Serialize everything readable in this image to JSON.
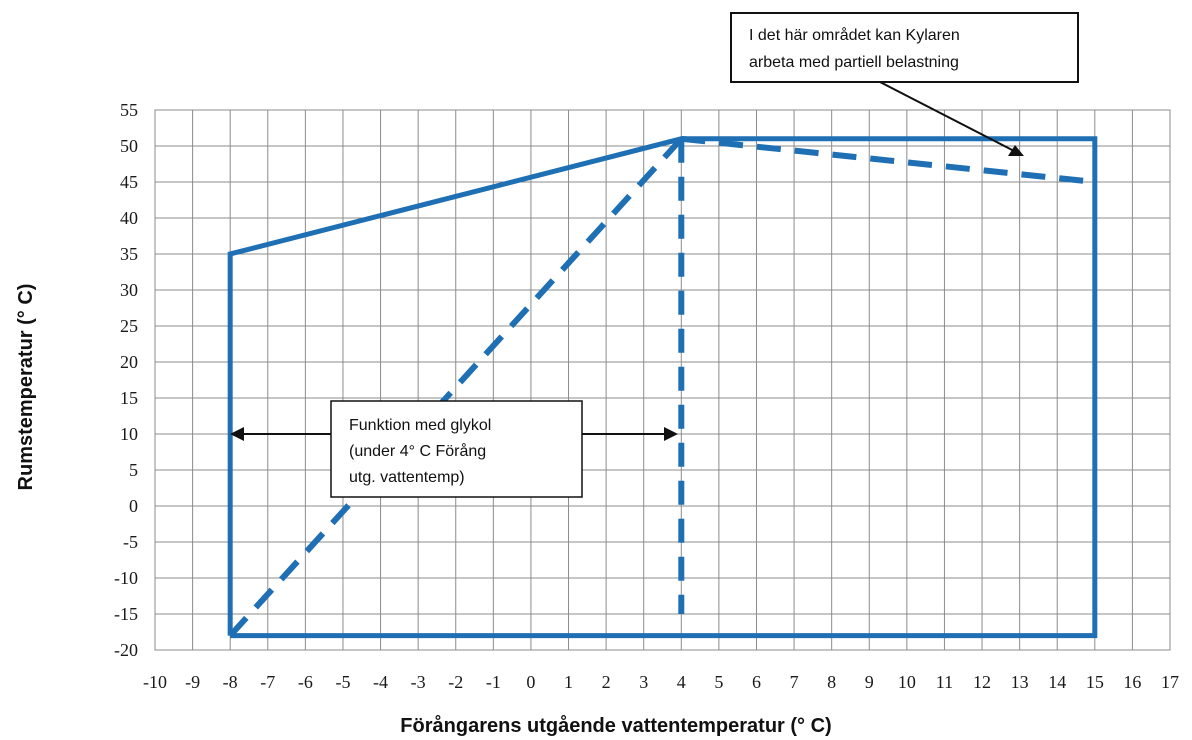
{
  "chart_data": {
    "type": "line",
    "title": "",
    "xlabel": "Förångarens utgående vattentemperatur (° C)",
    "ylabel": "Rumstemperatur  (° C)",
    "xlim": [
      -10,
      17
    ],
    "ylim": [
      -20,
      55
    ],
    "x_ticks": [
      "-10",
      "-9",
      "-8",
      "-7",
      "-6",
      "-5",
      "-4",
      "-3",
      "-2",
      "-1",
      "0",
      "1",
      "2",
      "3",
      "4",
      "5",
      "6",
      "7",
      "8",
      "9",
      "10",
      "11",
      "12",
      "13",
      "14",
      "15",
      "16",
      "17"
    ],
    "y_ticks": [
      "55",
      "50",
      "45",
      "40",
      "35",
      "30",
      "25",
      "20",
      "15",
      "10",
      "5",
      "0",
      "-5",
      "-10",
      "-15",
      "-20"
    ],
    "grid": true,
    "color": "#1f6fb4",
    "series": [
      {
        "style": "solid",
        "x": [
          -8,
          -8,
          4,
          15,
          15,
          -8
        ],
        "y": [
          -18,
          35,
          51,
          51,
          -18,
          -18
        ]
      },
      {
        "style": "dashed",
        "x": [
          -8,
          4
        ],
        "y": [
          -18,
          51
        ]
      },
      {
        "style": "dashed",
        "x": [
          4,
          4
        ],
        "y": [
          51,
          -15
        ]
      },
      {
        "style": "dashed",
        "x": [
          4,
          15
        ],
        "y": [
          51,
          45
        ]
      }
    ],
    "annotations": [
      {
        "text": [
          "I det här området kan Kylaren",
          "arbeta med partiell belastning"
        ]
      },
      {
        "text": [
          "Funktion med glykol",
          "(under  4°  C  Förång",
          "utg. vattentemp)"
        ]
      }
    ]
  }
}
